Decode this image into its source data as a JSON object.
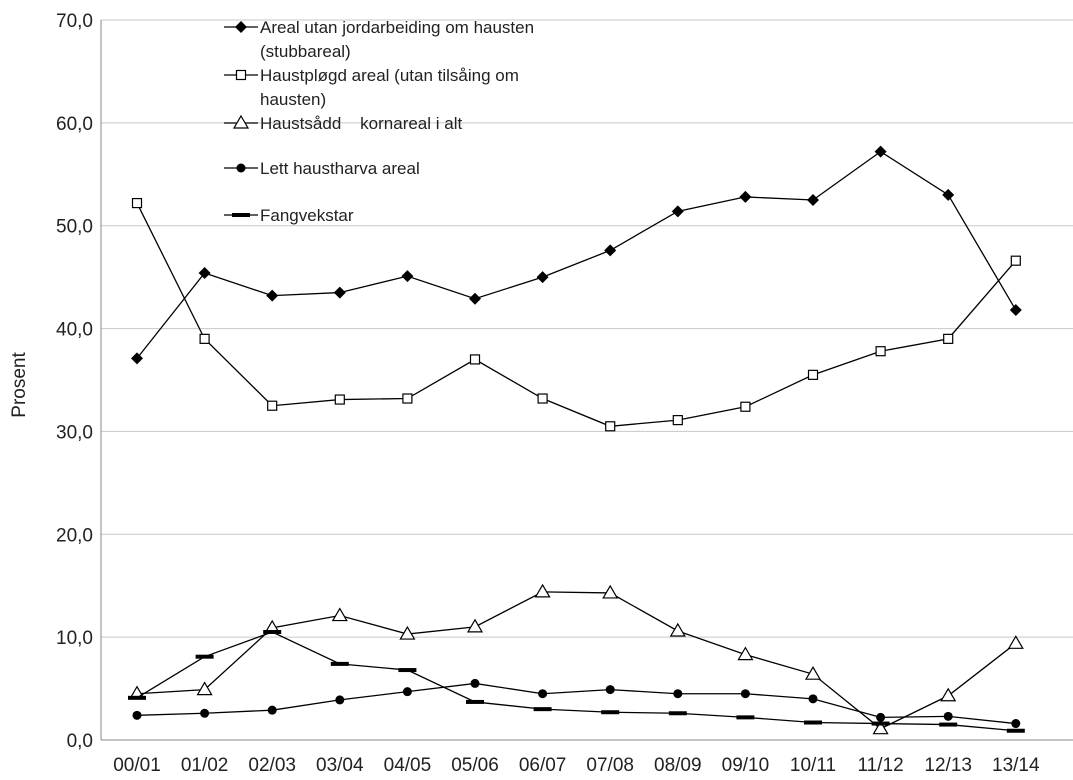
{
  "chart_data": {
    "type": "line",
    "title": "",
    "ylabel": "Prosent",
    "xlabel": "",
    "ylim": [
      0,
      70
    ],
    "yticks": [
      "0,0",
      "10,0",
      "20,0",
      "30,0",
      "40,0",
      "50,0",
      "60,0",
      "70,0"
    ],
    "categories": [
      "00/01",
      "01/02",
      "02/03",
      "03/04",
      "04/05",
      "05/06",
      "06/07",
      "07/08",
      "08/09",
      "09/10",
      "10/11",
      "11/12",
      "12/13",
      "13/14"
    ],
    "grid": "horizontal",
    "legend_position": "top-left",
    "series": [
      {
        "name": "Areal utan jordarbeiding om hausten (stubbareal)",
        "legend_lines": [
          "Areal utan jordarbeiding om hausten",
          "(stubbareal)"
        ],
        "marker": "diamond",
        "values": [
          37.1,
          45.4,
          43.2,
          43.5,
          45.1,
          42.9,
          45.0,
          47.6,
          51.4,
          52.8,
          52.5,
          57.2,
          53.0,
          41.8
        ]
      },
      {
        "name": "Haustpløgd areal (utan tilsåing om hausten)",
        "legend_lines": [
          "Haustpløgd areal (utan tilsåing om",
          "hausten)"
        ],
        "marker": "open-square",
        "values": [
          52.2,
          39.0,
          32.5,
          33.1,
          33.2,
          37.0,
          33.2,
          30.5,
          31.1,
          32.4,
          35.5,
          37.8,
          39.0,
          46.6
        ]
      },
      {
        "name": "Haustsådd kornareal i alt",
        "legend_lines": [
          "Haustsådd    kornareal i alt"
        ],
        "marker": "open-triangle",
        "values": [
          4.5,
          4.9,
          10.9,
          12.1,
          10.3,
          11.0,
          14.4,
          14.3,
          10.6,
          8.3,
          6.4,
          1.1,
          4.3,
          9.4
        ]
      },
      {
        "name": "Lett haustharva areal",
        "legend_lines": [
          "Lett haustharva areal"
        ],
        "marker": "circle",
        "values": [
          2.4,
          2.6,
          2.9,
          3.9,
          4.7,
          5.5,
          4.5,
          4.9,
          4.5,
          4.5,
          4.0,
          2.2,
          2.3,
          1.6
        ]
      },
      {
        "name": "Fangvekstar",
        "legend_lines": [
          "Fangvekstar"
        ],
        "marker": "dash",
        "values": [
          4.1,
          8.1,
          10.5,
          7.4,
          6.8,
          3.7,
          3.0,
          2.7,
          2.6,
          2.2,
          1.7,
          1.6,
          1.5,
          0.9
        ]
      }
    ],
    "colors": {
      "line": "#000000",
      "grid": "#c8c8c8",
      "text": "#222222"
    }
  }
}
